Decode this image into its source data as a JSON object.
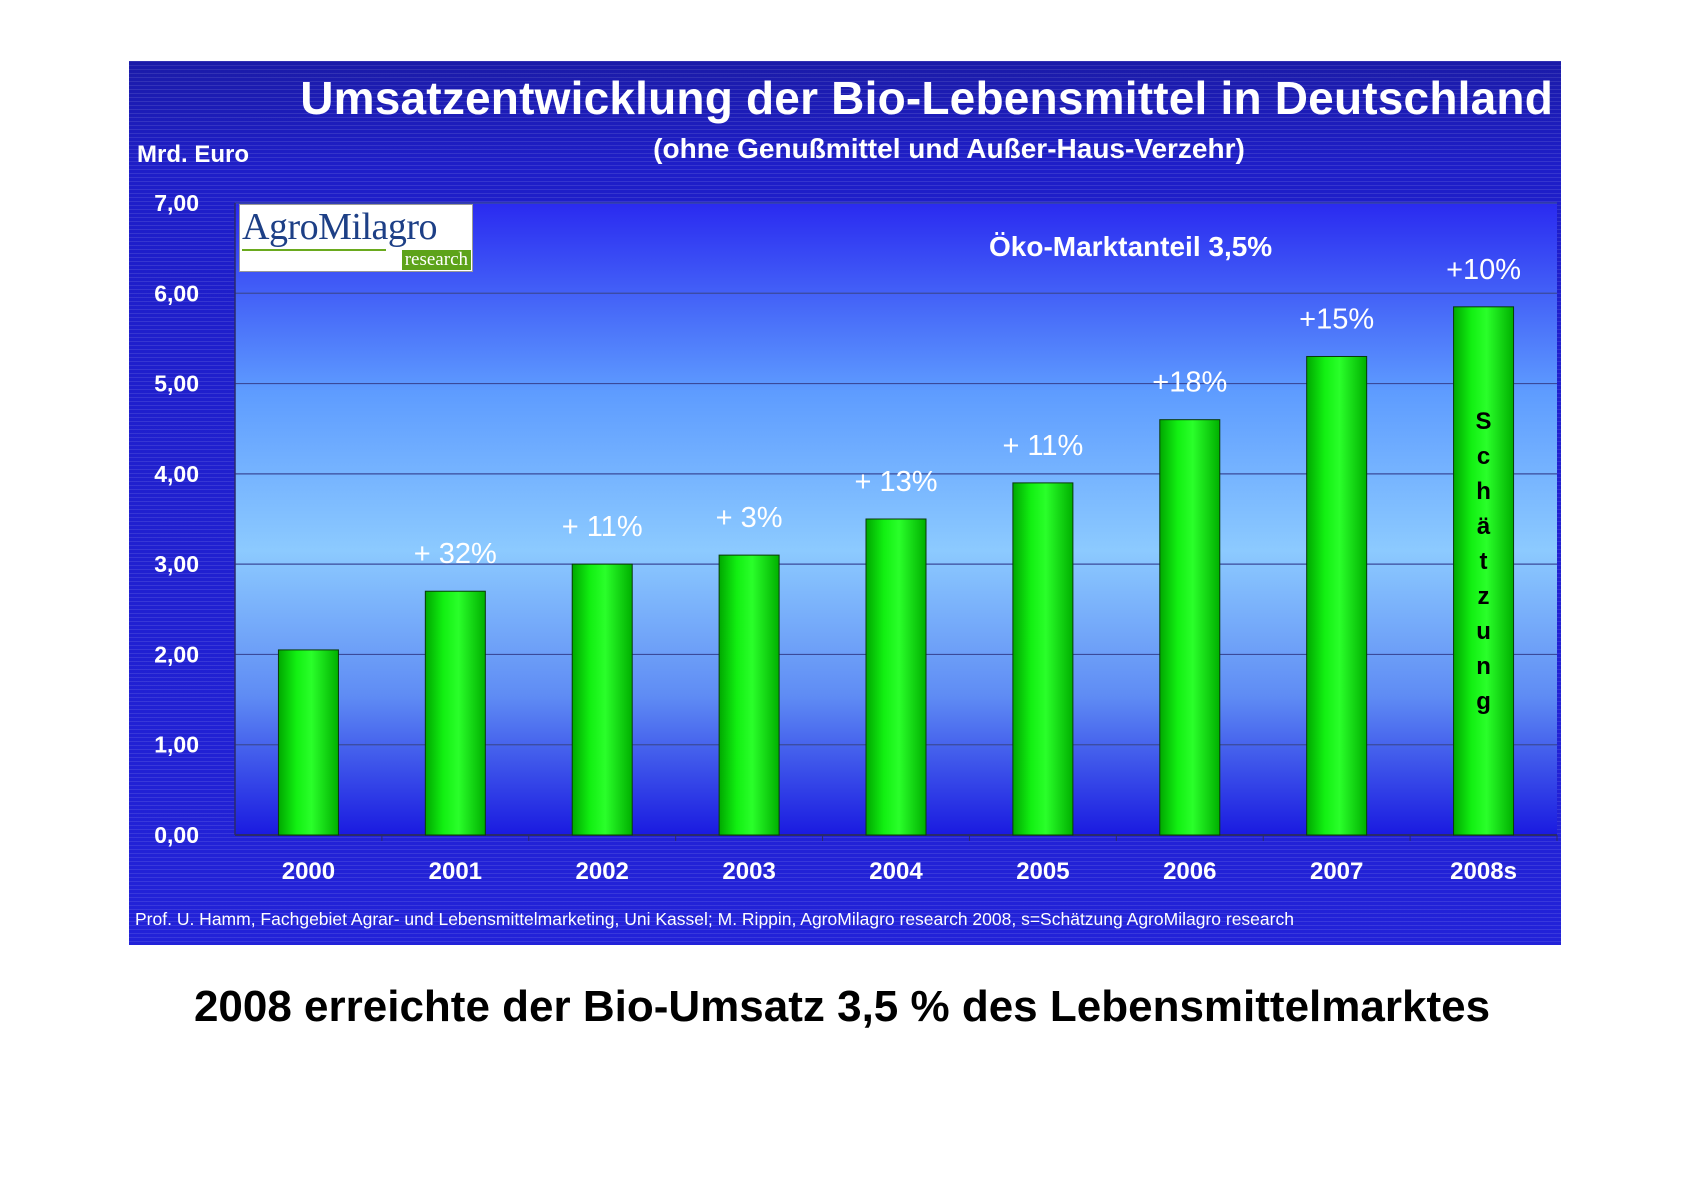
{
  "chart_data": {
    "type": "bar",
    "title": "Umsatzentwicklung der Bio-Lebensmittel in Deutschland",
    "subtitle": "(ohne Genußmittel und Außer-Haus-Verzehr)",
    "ylabel": "Mrd. Euro",
    "ylim": [
      0,
      7
    ],
    "yticks": [
      "0,00",
      "1,00",
      "2,00",
      "3,00",
      "4,00",
      "5,00",
      "6,00",
      "7,00"
    ],
    "categories": [
      "2000",
      "2001",
      "2002",
      "2003",
      "2004",
      "2005",
      "2006",
      "2007",
      "2008s"
    ],
    "values": [
      2.05,
      2.7,
      3.0,
      3.1,
      3.5,
      3.9,
      4.6,
      5.3,
      5.85
    ],
    "data_labels": [
      "",
      "+ 32%",
      "+ 11%",
      "+ 3%",
      "+ 13%",
      "+ 11%",
      "+18%",
      "+15%",
      "+10%"
    ],
    "bar_annotation": {
      "category": "2008s",
      "text": "Schätzung"
    },
    "annotation": "Öko-Marktanteil 3,5%",
    "grid": true,
    "colors": {
      "bar": "#00dd00",
      "background": "#2020cc",
      "plot_bottom": "#1818e0",
      "plot_mid": "#8ccaff"
    }
  },
  "logo": {
    "name": "AgroMilagro",
    "tag": "research"
  },
  "source": "Prof. U. Hamm, Fachgebiet Agrar- und Lebensmittelmarketing, Uni Kassel; M. Rippin, AgroMilagro research 2008, s=Schätzung AgroMilagro research",
  "headline": "2008 erreichte der Bio-Umsatz 3,5 % des Lebensmittelmarktes"
}
